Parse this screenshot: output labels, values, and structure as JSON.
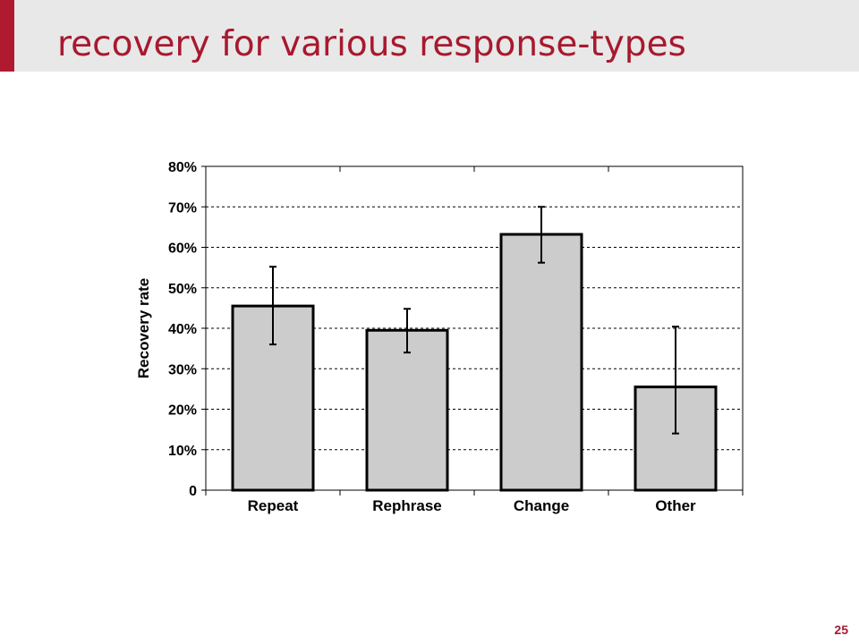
{
  "slide": {
    "title": "recovery for various response-types",
    "page_number": "25",
    "accent_color": "#b01a30",
    "title_color": "#a8192e"
  },
  "chart_data": {
    "type": "bar",
    "title": "",
    "xlabel": "",
    "ylabel": "Recovery rate",
    "categories": [
      "Repeat",
      "Rephrase",
      "Change",
      "Other"
    ],
    "values": [
      0.455,
      0.395,
      0.632,
      0.255
    ],
    "error_bars": [
      {
        "low": 0.36,
        "high": 0.552
      },
      {
        "low": 0.34,
        "high": 0.448
      },
      {
        "low": 0.562,
        "high": 0.7
      },
      {
        "low": 0.14,
        "high": 0.404
      }
    ],
    "ylim": [
      0,
      0.8
    ],
    "y_ticks": [
      0,
      0.1,
      0.2,
      0.3,
      0.4,
      0.5,
      0.6,
      0.7,
      0.8
    ],
    "y_tick_labels": [
      "0",
      "10%",
      "20%",
      "30%",
      "40%",
      "50%",
      "60%",
      "70%",
      "80%"
    ],
    "grid": true,
    "bar_color": "#cccccc",
    "edge_color": "#000000"
  }
}
